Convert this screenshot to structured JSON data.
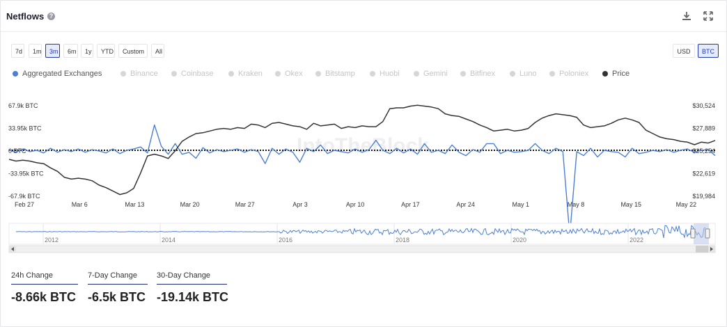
{
  "header": {
    "title": "Netflows",
    "help_icon": "question-icon"
  },
  "range_buttons": [
    "7d",
    "1m",
    "3m",
    "6m",
    "1y",
    "YTD",
    "Custom",
    "All"
  ],
  "active_range": "3m",
  "unit_buttons": [
    "USD",
    "BTC"
  ],
  "active_unit": "BTC",
  "legend": [
    {
      "label": "Aggregated Exchanges",
      "color": "#4a7fd4",
      "active": true
    },
    {
      "label": "Binance",
      "active": false
    },
    {
      "label": "Coinbase",
      "active": false
    },
    {
      "label": "Kraken",
      "active": false
    },
    {
      "label": "Okex",
      "active": false
    },
    {
      "label": "Bitstamp",
      "active": false
    },
    {
      "label": "Huobi",
      "active": false
    },
    {
      "label": "Gemini",
      "active": false
    },
    {
      "label": "Bitfinex",
      "active": false
    },
    {
      "label": "Luno",
      "active": false
    },
    {
      "label": "Poloniex",
      "active": false
    },
    {
      "label": "Price",
      "color": "#333333",
      "active": true
    }
  ],
  "watermark": "IntoTheBlock",
  "chart_data": {
    "type": "line",
    "title": "Netflows",
    "x_tick_labels": [
      "Feb 27",
      "Mar 6",
      "Mar 13",
      "Mar 20",
      "Mar 27",
      "Apr 3",
      "Apr 10",
      "Apr 17",
      "Apr 24",
      "May 1",
      "May 8",
      "May 15",
      "May 22"
    ],
    "y_left": {
      "tick_labels": [
        "67.9k BTC",
        "33.95k BTC",
        "0 BTC",
        "-33.95k BTC",
        "-67.9k BTC"
      ],
      "range": [
        -67900,
        67900
      ]
    },
    "y_right": {
      "tick_labels": [
        "$30,524",
        "$27,889",
        "$25,254",
        "$22,619",
        "$19,984"
      ],
      "range": [
        19984,
        30524
      ]
    },
    "series": [
      {
        "name": "Aggregated Exchanges",
        "axis": "left",
        "color": "#4a7fd4",
        "values": [
          0,
          -3000,
          2000,
          -2000,
          0,
          -4000,
          3000,
          -3000,
          1000,
          -2000,
          2000,
          -3000,
          1000,
          -1000,
          -4000,
          2000,
          -5000,
          0,
          2000,
          5000,
          -4000,
          38000,
          6000,
          -6000,
          10000,
          -6000,
          -3000,
          -12000,
          4000,
          -4000,
          1000,
          -2000,
          0,
          2000,
          -3000,
          1000,
          -2000,
          -20000,
          3000,
          -6000,
          2000,
          -3000,
          -18000,
          3000,
          -2000,
          8000,
          -5000,
          0,
          -2000,
          -4000,
          2000,
          -3000,
          1000,
          15000,
          0,
          -5000,
          3000,
          -4000,
          2000,
          -6000,
          10000,
          -3000,
          0,
          -5000,
          8000,
          -3000,
          -8000,
          1000,
          -3000,
          10000,
          10000,
          -5000,
          0,
          -3000,
          -2000,
          0,
          10000,
          0,
          -5000,
          3000,
          -2000,
          -128000,
          -2000,
          -8000,
          3000,
          -10000,
          0,
          -2000,
          -3000,
          -10000,
          3000,
          -5000,
          -3000,
          0,
          -2000,
          1000,
          -3000,
          0,
          2000,
          -3000,
          0,
          1000,
          -8000
        ]
      },
      {
        "name": "Price",
        "axis": "right",
        "color": "#333333",
        "values": [
          24200,
          24000,
          24100,
          24000,
          23800,
          23700,
          23200,
          22800,
          22100,
          21900,
          22000,
          21900,
          21700,
          21200,
          20900,
          20500,
          20100,
          20300,
          20800,
          22600,
          24600,
          24800,
          24600,
          24300,
          25200,
          26300,
          26800,
          27200,
          27300,
          27500,
          27700,
          27800,
          27700,
          27900,
          27800,
          28300,
          28200,
          27900,
          28400,
          28500,
          28300,
          28100,
          28000,
          27700,
          28400,
          28100,
          28200,
          28300,
          27800,
          28000,
          27900,
          28100,
          28000,
          28000,
          28600,
          30100,
          30200,
          30200,
          30400,
          30500,
          30400,
          30300,
          30100,
          29500,
          29300,
          29200,
          28900,
          28600,
          28200,
          27900,
          27500,
          27600,
          27700,
          27500,
          27600,
          27800,
          28500,
          29000,
          29300,
          29500,
          29400,
          29300,
          29100,
          28200,
          27900,
          28000,
          28100,
          28400,
          28800,
          29000,
          28800,
          28500,
          27600,
          27200,
          26800,
          26600,
          26500,
          26300,
          26200,
          25900,
          26200,
          26100,
          26400
        ]
      }
    ],
    "navigator_year_labels": [
      "2012",
      "2014",
      "2016",
      "2018",
      "2020",
      "2022"
    ]
  },
  "stats": [
    {
      "label": "24h Change",
      "value": "-8.66k BTC"
    },
    {
      "label": "7-Day Change",
      "value": "-6.5k BTC"
    },
    {
      "label": "30-Day Change",
      "value": "-19.14k BTC"
    }
  ],
  "colors": {
    "accent": "#1f3bb3",
    "netflow": "#4a7fd4",
    "price": "#333333"
  }
}
